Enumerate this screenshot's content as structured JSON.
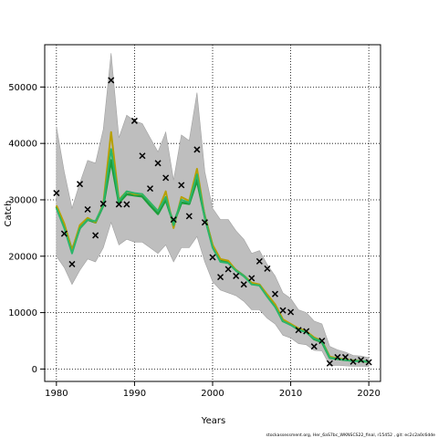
{
  "chart_data": {
    "type": "line",
    "title": "",
    "xlabel": "Years",
    "ylabel": "Catch",
    "xlim": [
      1978.5,
      2021.5
    ],
    "ylim": [
      -2200,
      57500
    ],
    "xticks": [
      1980,
      1990,
      2000,
      2010,
      2020
    ],
    "yticks": [
      0,
      10000,
      20000,
      30000,
      40000,
      50000
    ],
    "grid": true,
    "x": [
      1980,
      1981,
      1982,
      1983,
      1984,
      1985,
      1986,
      1987,
      1988,
      1989,
      1990,
      1991,
      1992,
      1993,
      1994,
      1995,
      1996,
      1997,
      1998,
      1999,
      2000,
      2001,
      2002,
      2003,
      2004,
      2005,
      2006,
      2007,
      2008,
      2009,
      2010,
      2011,
      2012,
      2013,
      2014,
      2015,
      2016,
      2017,
      2018,
      2019,
      2020
    ],
    "observed": [
      31200,
      24000,
      18600,
      32800,
      28300,
      23700,
      29300,
      51200,
      29200,
      29200,
      44000,
      37800,
      32000,
      36500,
      33900,
      26500,
      32600,
      27100,
      38900,
      26000,
      19800,
      16300,
      17700,
      16500,
      15000,
      16100,
      19100,
      17800,
      13300,
      10400,
      10100,
      6900,
      6700,
      4000,
      5000,
      1000,
      2100,
      2100,
      1300,
      1600,
      1200
    ],
    "series": [
      {
        "name": "",
        "color": "#1b9e3a",
        "values": [
          28800,
          25500,
          21000,
          25000,
          26500,
          26000,
          29000,
          37000,
          29500,
          31000,
          30800,
          30600,
          29000,
          27500,
          30000,
          25800,
          29500,
          29300,
          33500,
          27000,
          21800,
          19200,
          18900,
          17500,
          16500,
          15200,
          14900,
          13000,
          11200,
          8500,
          7900,
          7000,
          6600,
          5300,
          4800,
          2000,
          1800,
          1600,
          1500,
          1400,
          1300
        ]
      },
      {
        "name": "",
        "color": "#b8a000",
        "values": [
          29000,
          25800,
          21000,
          25500,
          26800,
          26000,
          29300,
          42000,
          30000,
          31500,
          31000,
          31000,
          29500,
          28000,
          31500,
          25000,
          30500,
          29800,
          35500,
          27000,
          22000,
          19500,
          19200,
          17500,
          16500,
          15300,
          15000,
          13200,
          11500,
          8800,
          8000,
          7200,
          6700,
          5600,
          5000,
          2200,
          1900,
          1700,
          1500,
          1400,
          1300
        ]
      },
      {
        "name": "",
        "color": "#2bb56a",
        "values": [
          28500,
          25000,
          20500,
          25000,
          26500,
          26200,
          29000,
          39000,
          29800,
          31500,
          31200,
          31000,
          29500,
          28000,
          30500,
          25500,
          30000,
          29500,
          34500,
          26800,
          21500,
          19000,
          18800,
          17400,
          16500,
          15000,
          14800,
          12800,
          11000,
          8500,
          7800,
          7000,
          6500,
          5400,
          4900,
          2000,
          1800,
          1600,
          1400,
          1400,
          1300
        ]
      }
    ],
    "band_upper": [
      43000,
      35000,
      28500,
      33000,
      37000,
      36500,
      42500,
      56000,
      41000,
      45000,
      44000,
      43500,
      41000,
      38500,
      42000,
      33500,
      41500,
      40500,
      49000,
      35000,
      28500,
      26500,
      26500,
      24500,
      23000,
      20500,
      21000,
      18500,
      16500,
      13500,
      12500,
      10500,
      10000,
      8500,
      8000,
      4000,
      3400,
      3000,
      2400,
      2300,
      2000
    ],
    "band_lower": [
      20000,
      18000,
      15000,
      17500,
      19500,
      19000,
      21500,
      26000,
      22000,
      23000,
      22500,
      22500,
      21500,
      20500,
      22000,
      19000,
      21500,
      21500,
      23500,
      19000,
      15500,
      14000,
      13500,
      13000,
      12000,
      10500,
      10500,
      9000,
      8000,
      6000,
      5500,
      4500,
      4300,
      3300,
      3200,
      600,
      650,
      550,
      500,
      500,
      450
    ],
    "line_colors": {
      "band": "#bebebe",
      "band_edge": "#a0a0a0",
      "main": "#1b9e3a",
      "alt1": "#b8a000",
      "alt2": "#2bb56a",
      "marker": "#000000"
    }
  },
  "footer": "stockassessment.org, Her_6aS7bc_WKNSCS22_final, r15452 , git: ec2c2a0c6dde"
}
